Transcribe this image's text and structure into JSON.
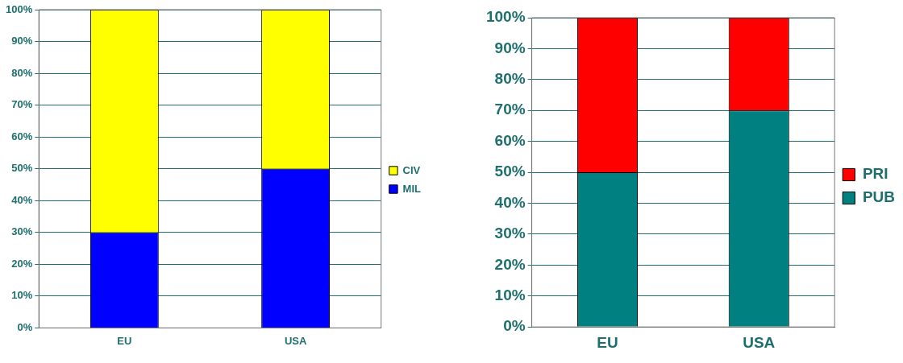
{
  "chart_data": [
    {
      "type": "bar",
      "stacked": true,
      "categories": [
        "EU",
        "USA"
      ],
      "series": [
        {
          "name": "MIL",
          "color": "#0000ff",
          "values": [
            30,
            50
          ]
        },
        {
          "name": "CIV",
          "color": "#ffff00",
          "values": [
            70,
            50
          ]
        }
      ],
      "ylim": [
        0,
        100
      ],
      "yticks": [
        {
          "value": 0,
          "label": "0%"
        },
        {
          "value": 10,
          "label": "10%"
        },
        {
          "value": 20,
          "label": "20%"
        },
        {
          "value": 30,
          "label": "30%"
        },
        {
          "value": 40,
          "label": "40%"
        },
        {
          "value": 50,
          "label": "50%"
        },
        {
          "value": 60,
          "label": "60%"
        },
        {
          "value": 70,
          "label": "70%"
        },
        {
          "value": 80,
          "label": "80%"
        },
        {
          "value": 90,
          "label": "90%"
        },
        {
          "value": 100,
          "label": "100%"
        }
      ],
      "grid": "y",
      "legend": "right"
    },
    {
      "type": "bar",
      "stacked": true,
      "categories": [
        "EU",
        "USA"
      ],
      "series": [
        {
          "name": "PUB",
          "color": "#008080",
          "values": [
            50,
            70
          ]
        },
        {
          "name": "PRI",
          "color": "#ff0000",
          "values": [
            50,
            30
          ]
        }
      ],
      "ylim": [
        0,
        100
      ],
      "yticks": [
        {
          "value": 0,
          "label": "0%"
        },
        {
          "value": 10,
          "label": "10%"
        },
        {
          "value": 20,
          "label": "20%"
        },
        {
          "value": 30,
          "label": "30%"
        },
        {
          "value": 40,
          "label": "40%"
        },
        {
          "value": 50,
          "label": "50%"
        },
        {
          "value": 60,
          "label": "60%"
        },
        {
          "value": 70,
          "label": "70%"
        },
        {
          "value": 80,
          "label": "80%"
        },
        {
          "value": 90,
          "label": "90%"
        },
        {
          "value": 100,
          "label": "100%"
        }
      ],
      "grid": "y",
      "legend": "right"
    }
  ]
}
